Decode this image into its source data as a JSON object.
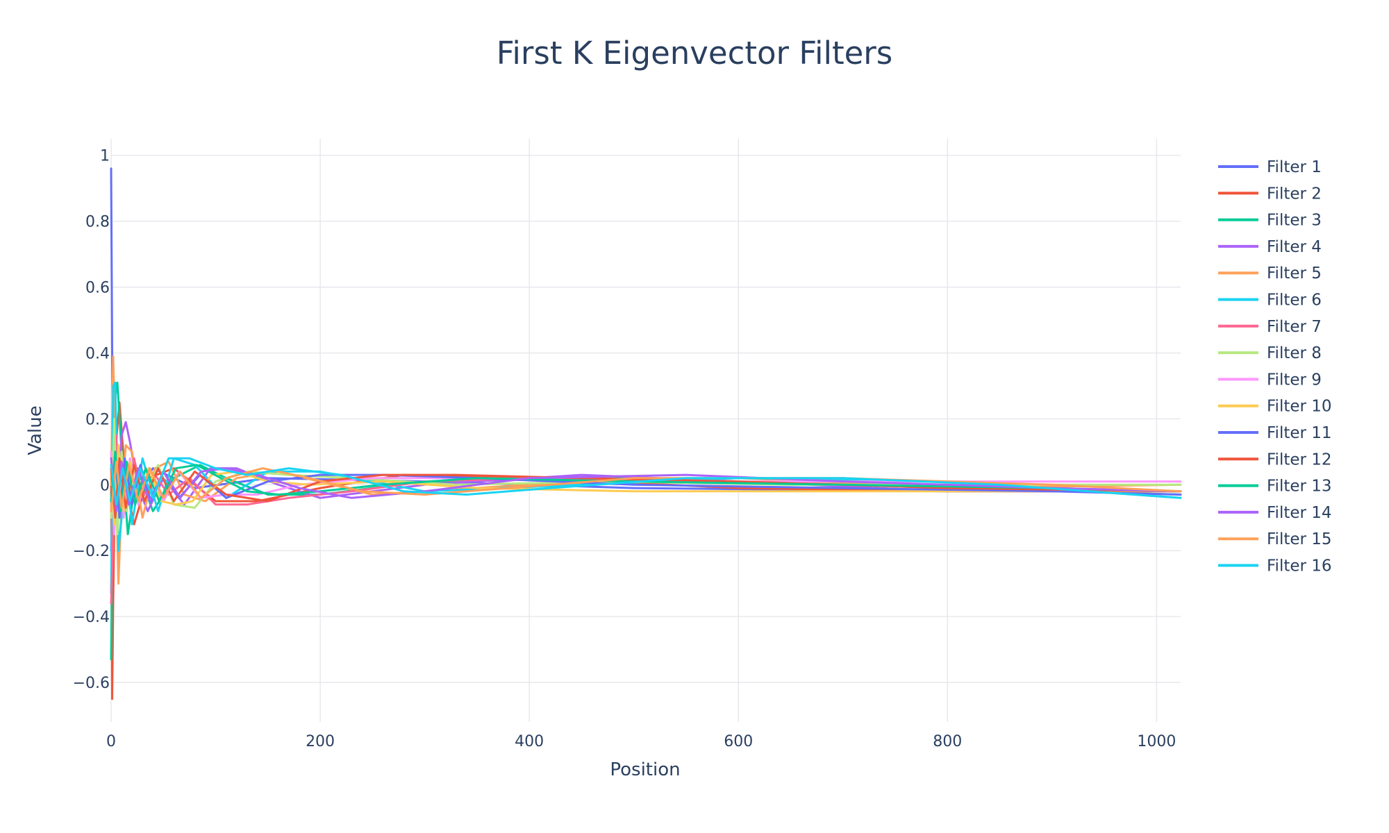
{
  "chart_data": {
    "type": "line",
    "title": "First K Eigenvector Filters",
    "xlabel": "Position",
    "ylabel": "Value",
    "xlim": [
      0,
      1023
    ],
    "ylim": [
      -0.72,
      1.05
    ],
    "xticks": [
      0,
      200,
      400,
      600,
      800,
      1000
    ],
    "xtick_labels": [
      "0",
      "200",
      "400",
      "600",
      "800",
      "1000"
    ],
    "yticks": [
      -0.6,
      -0.4,
      -0.2,
      0,
      0.2,
      0.4,
      0.6,
      0.8,
      1
    ],
    "ytick_labels": [
      "−0.6",
      "−0.4",
      "−0.2",
      "0",
      "0.2",
      "0.4",
      "0.6",
      "0.8",
      "1"
    ],
    "grid": true,
    "legend_position": "right",
    "series": [
      {
        "name": "Filter 1",
        "color": "#636efa",
        "x": [
          0,
          1,
          2,
          3,
          5,
          8,
          12,
          20,
          40,
          80,
          150,
          300,
          500,
          800,
          1023
        ],
        "y": [
          0.96,
          0.4,
          0.05,
          -0.12,
          -0.08,
          0.06,
          0.08,
          -0.05,
          0.05,
          -0.01,
          0.02,
          0.01,
          -0.01,
          -0.02,
          -0.02
        ]
      },
      {
        "name": "Filter 2",
        "color": "#ef553b",
        "x": [
          0,
          1,
          2,
          4,
          8,
          14,
          22,
          35,
          60,
          100,
          140,
          200,
          280,
          400,
          600,
          800,
          1023
        ],
        "y": [
          0.02,
          -0.65,
          -0.35,
          0.1,
          0.25,
          0.0,
          -0.12,
          0.02,
          0.05,
          -0.05,
          -0.05,
          -0.01,
          0.03,
          0.02,
          -0.01,
          -0.02,
          -0.02
        ]
      },
      {
        "name": "Filter 3",
        "color": "#00cc96",
        "x": [
          0,
          1,
          3,
          6,
          10,
          16,
          25,
          40,
          60,
          85,
          110,
          150,
          200,
          300,
          500,
          700,
          1023
        ],
        "y": [
          -0.53,
          -0.2,
          0.25,
          0.31,
          0.1,
          -0.15,
          0.05,
          -0.08,
          0.02,
          0.06,
          0.02,
          -0.03,
          -0.03,
          0.01,
          0.02,
          0.0,
          -0.03
        ]
      },
      {
        "name": "Filter 4",
        "color": "#ab63fa",
        "x": [
          0,
          3,
          6,
          10,
          14,
          18,
          25,
          35,
          50,
          70,
          95,
          120,
          160,
          200,
          300,
          450,
          600,
          800,
          1023
        ],
        "y": [
          -0.2,
          0.1,
          -0.05,
          0.15,
          0.19,
          0.13,
          0.0,
          -0.08,
          0.02,
          -0.06,
          0.05,
          0.05,
          0.0,
          -0.04,
          0.0,
          0.03,
          0.01,
          -0.02,
          -0.02
        ]
      },
      {
        "name": "Filter 5",
        "color": "#ffa15a",
        "x": [
          0,
          2,
          4,
          7,
          10,
          14,
          20,
          30,
          42,
          55,
          70,
          90,
          120,
          160,
          250,
          400,
          600,
          800,
          1023
        ],
        "y": [
          0.0,
          0.39,
          0.1,
          -0.3,
          -0.05,
          0.12,
          0.1,
          -0.1,
          0.05,
          0.07,
          -0.03,
          -0.05,
          0.02,
          0.04,
          -0.03,
          0.0,
          0.02,
          -0.01,
          0.0
        ]
      },
      {
        "name": "Filter 6",
        "color": "#19d3f3",
        "x": [
          0,
          2,
          4,
          7,
          10,
          14,
          20,
          30,
          45,
          60,
          80,
          110,
          150,
          200,
          300,
          450,
          600,
          800,
          1023
        ],
        "y": [
          -0.33,
          0.3,
          0.31,
          -0.2,
          -0.1,
          0.06,
          -0.12,
          0.08,
          -0.08,
          0.08,
          0.06,
          -0.04,
          0.04,
          0.04,
          -0.02,
          0.0,
          0.02,
          0.01,
          -0.04
        ]
      },
      {
        "name": "Filter 7",
        "color": "#ff6692",
        "x": [
          0,
          2,
          5,
          8,
          12,
          16,
          22,
          30,
          42,
          55,
          75,
          100,
          130,
          170,
          230,
          300,
          400,
          600,
          800,
          1023
        ],
        "y": [
          -0.36,
          -0.15,
          0.15,
          -0.1,
          0.05,
          -0.05,
          0.08,
          -0.04,
          0.03,
          -0.03,
          0.02,
          -0.06,
          -0.06,
          -0.04,
          -0.02,
          0.01,
          0.02,
          0.01,
          -0.01,
          -0.02
        ]
      },
      {
        "name": "Filter 8",
        "color": "#b6e880",
        "x": [
          0,
          3,
          6,
          10,
          15,
          22,
          32,
          45,
          60,
          80,
          100,
          130,
          170,
          230,
          330,
          480,
          650,
          850,
          1023
        ],
        "y": [
          -0.1,
          0.2,
          -0.15,
          0.1,
          -0.08,
          0.06,
          -0.05,
          0.06,
          -0.06,
          -0.07,
          0.01,
          0.04,
          0.03,
          0.02,
          0.0,
          0.01,
          0.0,
          0.0,
          0.0
        ]
      },
      {
        "name": "Filter 9",
        "color": "#ff97ff",
        "x": [
          0,
          3,
          7,
          12,
          18,
          26,
          36,
          50,
          65,
          85,
          110,
          140,
          180,
          250,
          350,
          500,
          700,
          900,
          1023
        ],
        "y": [
          0.1,
          -0.15,
          0.1,
          -0.1,
          0.08,
          -0.06,
          0.05,
          -0.05,
          0.04,
          -0.04,
          -0.03,
          -0.03,
          0.0,
          0.02,
          0.02,
          0.01,
          0.01,
          0.01,
          0.01
        ]
      },
      {
        "name": "Filter 10",
        "color": "#fecb52",
        "x": [
          0,
          3,
          7,
          12,
          18,
          26,
          36,
          48,
          62,
          78,
          96,
          120,
          150,
          190,
          260,
          350,
          500,
          700,
          900,
          1023
        ],
        "y": [
          0.05,
          -0.12,
          0.12,
          -0.08,
          0.07,
          -0.05,
          0.05,
          -0.05,
          -0.06,
          -0.05,
          0.03,
          0.04,
          0.01,
          0.0,
          0.01,
          -0.01,
          -0.02,
          -0.02,
          -0.02,
          -0.02
        ]
      },
      {
        "name": "Filter 11",
        "color": "#636efa",
        "x": [
          0,
          4,
          8,
          13,
          20,
          28,
          38,
          50,
          65,
          85,
          110,
          150,
          200,
          260,
          350,
          500,
          700,
          900,
          1023
        ],
        "y": [
          -0.05,
          0.1,
          -0.1,
          0.08,
          -0.06,
          0.06,
          -0.05,
          0.04,
          -0.04,
          0.03,
          -0.04,
          0.01,
          0.03,
          0.03,
          0.02,
          0.0,
          -0.01,
          -0.02,
          -0.03
        ]
      },
      {
        "name": "Filter 12",
        "color": "#ef553b",
        "x": [
          0,
          4,
          8,
          14,
          22,
          32,
          45,
          60,
          80,
          110,
          150,
          200,
          260,
          330,
          450,
          600,
          800,
          1023
        ],
        "y": [
          0.05,
          -0.1,
          0.08,
          -0.07,
          0.06,
          -0.05,
          0.05,
          -0.05,
          0.04,
          -0.03,
          -0.05,
          0.01,
          0.03,
          0.03,
          0.02,
          0.01,
          -0.01,
          -0.02
        ]
      },
      {
        "name": "Filter 13",
        "color": "#00cc96",
        "x": [
          0,
          4,
          9,
          15,
          23,
          33,
          46,
          62,
          82,
          105,
          130,
          160,
          200,
          260,
          350,
          500,
          700,
          900,
          1023
        ],
        "y": [
          -0.05,
          0.1,
          -0.08,
          0.07,
          -0.06,
          0.05,
          -0.05,
          0.05,
          0.06,
          0.02,
          -0.02,
          -0.03,
          -0.02,
          0.0,
          0.02,
          0.01,
          0.0,
          -0.01,
          -0.02
        ]
      },
      {
        "name": "Filter 14",
        "color": "#ab63fa",
        "x": [
          0,
          5,
          10,
          17,
          26,
          37,
          50,
          66,
          86,
          110,
          140,
          180,
          230,
          300,
          400,
          550,
          700,
          900,
          1023
        ],
        "y": [
          0.08,
          -0.08,
          0.07,
          -0.06,
          0.05,
          -0.05,
          0.04,
          -0.04,
          0.04,
          0.05,
          0.03,
          -0.01,
          -0.04,
          -0.02,
          0.02,
          0.03,
          0.01,
          -0.01,
          -0.02
        ]
      },
      {
        "name": "Filter 15",
        "color": "#ffa15a",
        "x": [
          0,
          5,
          10,
          17,
          26,
          37,
          50,
          66,
          86,
          110,
          145,
          190,
          240,
          300,
          380,
          500,
          700,
          900,
          1023
        ],
        "y": [
          -0.08,
          0.07,
          -0.07,
          0.06,
          -0.05,
          0.05,
          -0.04,
          0.04,
          -0.04,
          0.02,
          0.05,
          0.02,
          -0.02,
          -0.03,
          -0.01,
          0.02,
          0.02,
          0.0,
          -0.02
        ]
      },
      {
        "name": "Filter 16",
        "color": "#19d3f3",
        "x": [
          0,
          5,
          11,
          18,
          28,
          40,
          55,
          75,
          100,
          130,
          170,
          220,
          280,
          340,
          420,
          550,
          700,
          850,
          1023
        ],
        "y": [
          0.06,
          -0.06,
          0.05,
          -0.05,
          0.05,
          -0.04,
          0.08,
          0.08,
          0.05,
          0.03,
          0.05,
          0.03,
          -0.02,
          -0.03,
          -0.01,
          0.02,
          0.02,
          0.0,
          -0.04
        ]
      }
    ]
  }
}
